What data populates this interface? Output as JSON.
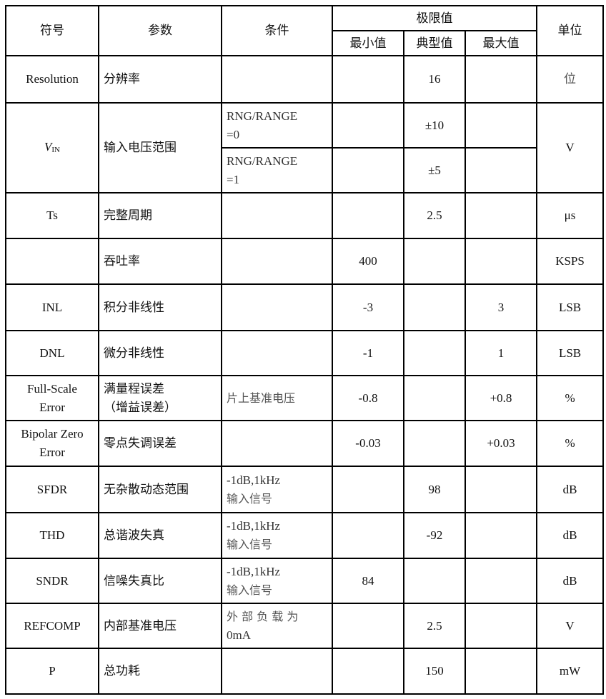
{
  "header": {
    "symbol": "符号",
    "parameter": "参数",
    "condition": "条件",
    "limits": "极限值",
    "min": "最小值",
    "typ": "典型值",
    "max": "最大值",
    "unit": "单位"
  },
  "rows": {
    "resolution": {
      "symbol": "Resolution",
      "param": "分辨率",
      "cond": "",
      "min": "",
      "typ": "16",
      "max": "",
      "unit": "位"
    },
    "vin": {
      "symbol_main": "V",
      "symbol_sub": "IN",
      "param": "输入电压范围",
      "unit": "V",
      "sub": [
        {
          "cond_1": "RNG/RANGE",
          "cond_2": "=0",
          "min": "",
          "typ": "±10",
          "max": ""
        },
        {
          "cond_1": "RNG/RANGE",
          "cond_2": "=1",
          "min": "",
          "typ": "±5",
          "max": ""
        }
      ]
    },
    "ts": {
      "symbol": "Ts",
      "param": "完整周期",
      "cond": "",
      "min": "",
      "typ": "2.5",
      "max": "",
      "unit": "μs"
    },
    "throughput": {
      "symbol": "",
      "param": "吞吐率",
      "cond": "",
      "min": "400",
      "typ": "",
      "max": "",
      "unit": "KSPS"
    },
    "inl": {
      "symbol": "INL",
      "param": "积分非线性",
      "cond": "",
      "min": "-3",
      "typ": "",
      "max": "3",
      "unit": "LSB"
    },
    "dnl": {
      "symbol": "DNL",
      "param": "微分非线性",
      "cond": "",
      "min": "-1",
      "typ": "",
      "max": "1",
      "unit": "LSB"
    },
    "fse": {
      "symbol_1": "Full-Scale",
      "symbol_2": "Error",
      "param_1": "满量程误差",
      "param_2": "（增益误差）",
      "cond": "片上基准电压",
      "min": "-0.8",
      "typ": "",
      "max": "+0.8",
      "unit": "%"
    },
    "bze": {
      "symbol_1": "Bipolar Zero",
      "symbol_2": "Error",
      "param": "零点失调误差",
      "cond": "",
      "min": "-0.03",
      "typ": "",
      "max": "+0.03",
      "unit": "%"
    },
    "sfdr": {
      "symbol": "SFDR",
      "param": "无杂散动态范围",
      "cond_1": "-1dB,1kHz",
      "cond_2": "输入信号",
      "min": "",
      "typ": "98",
      "max": "",
      "unit": "dB"
    },
    "thd": {
      "symbol": "THD",
      "param": "总谐波失真",
      "cond_1": "-1dB,1kHz",
      "cond_2": "输入信号",
      "min": "",
      "typ": "-92",
      "max": "",
      "unit": "dB"
    },
    "sndr": {
      "symbol": "SNDR",
      "param": "信噪失真比",
      "cond_1": "-1dB,1kHz",
      "cond_2": "输入信号",
      "min": "84",
      "typ": "",
      "max": "",
      "unit": "dB"
    },
    "refcomp": {
      "symbol": "REFCOMP",
      "param": "内部基准电压",
      "cond_1": "外 部 负 载 为",
      "cond_2": "0mA",
      "min": "",
      "typ": "2.5",
      "max": "",
      "unit": "V"
    },
    "power": {
      "symbol": "P",
      "param": "总功耗",
      "cond": "",
      "min": "",
      "typ": "150",
      "max": "",
      "unit": "mW"
    }
  }
}
